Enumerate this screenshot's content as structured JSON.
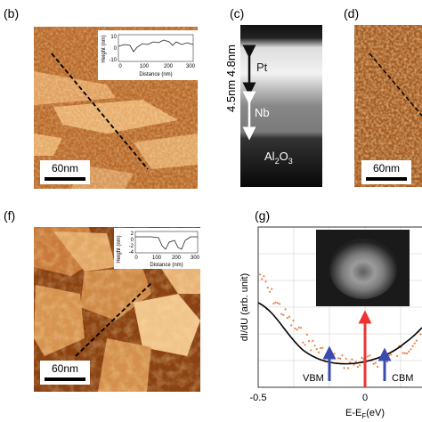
{
  "panels": {
    "b": {
      "label": "(b)",
      "inset": {
        "ylabel": "Height (nm)",
        "xlabel": "Distance (nm)",
        "yticks": [
          "10",
          "0",
          "-10"
        ],
        "xticks": [
          "0",
          "100",
          "200",
          "300"
        ]
      },
      "scale_bar": "60nm"
    },
    "c": {
      "label": "(c)",
      "thickness": "4.5nm 4.8nm",
      "pt": "Pt",
      "nb": "Nb",
      "substrate": {
        "al": "Al",
        "sub1": "2",
        "o": "O",
        "sub2": "3"
      }
    },
    "d": {
      "label": "(d)",
      "scale_bar": "60nm"
    },
    "f": {
      "label": "(f)",
      "inset": {
        "ylabel": "Height (nm)",
        "xlabel": "Distance (nm)",
        "yticks": [
          "2",
          "0",
          "-2",
          "-4"
        ],
        "xticks": [
          "0",
          "100",
          "200",
          "300"
        ]
      },
      "scale_bar": "60nm"
    },
    "g": {
      "label": "(g)",
      "ylabel": "dI/dU (arb. unit)",
      "xticks": [
        "-0.5",
        "0"
      ],
      "xlabel": {
        "main": "E-E",
        "sub": "F",
        "unit": "(eV)"
      },
      "vbm": "VBM",
      "cbm": "CBM"
    }
  }
}
